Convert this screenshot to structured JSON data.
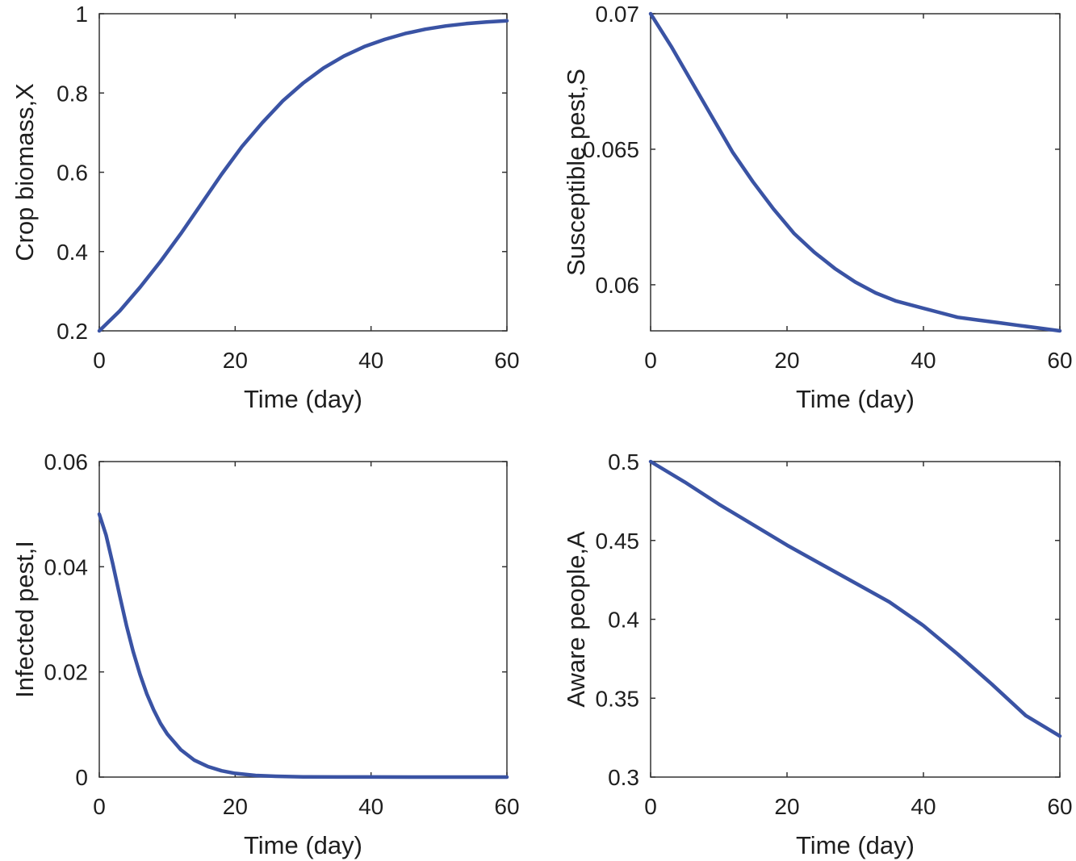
{
  "chart_data": [
    {
      "type": "line",
      "xlabel": "Time (day)",
      "ylabel": "Crop biomass,X",
      "xlim": [
        0,
        60
      ],
      "ylim": [
        0.2,
        1
      ],
      "xticks": [
        0,
        20,
        40,
        60
      ],
      "yticks": [
        0.2,
        0.4,
        0.6,
        0.8,
        1
      ],
      "ytick_labels": [
        "0.2",
        "0.4",
        "0.6",
        "0.8",
        "1"
      ],
      "grid": false,
      "color": "#3a53a4",
      "series": [
        {
          "x": [
            0,
            3,
            6,
            9,
            12,
            15,
            18,
            21,
            24,
            27,
            30,
            33,
            36,
            39,
            42,
            45,
            48,
            51,
            54,
            57,
            60
          ],
          "y": [
            0.2,
            0.25,
            0.31,
            0.375,
            0.445,
            0.52,
            0.595,
            0.665,
            0.725,
            0.78,
            0.825,
            0.863,
            0.893,
            0.917,
            0.935,
            0.95,
            0.961,
            0.969,
            0.975,
            0.979,
            0.982
          ]
        }
      ]
    },
    {
      "type": "line",
      "xlabel": "Time (day)",
      "ylabel": "Susceptible pest,S",
      "xlim": [
        0,
        60
      ],
      "ylim": [
        0.0583,
        0.07
      ],
      "xticks": [
        0,
        20,
        40,
        60
      ],
      "yticks": [
        0.06,
        0.065,
        0.07
      ],
      "ytick_labels": [
        "0.06",
        "0.065",
        "0.07"
      ],
      "grid": false,
      "color": "#3a53a4",
      "series": [
        {
          "x": [
            0,
            3,
            6,
            9,
            12,
            15,
            18,
            21,
            24,
            27,
            30,
            33,
            36,
            39,
            42,
            45,
            48,
            51,
            54,
            57,
            60
          ],
          "y": [
            0.07,
            0.0688,
            0.0675,
            0.0662,
            0.0649,
            0.0638,
            0.0628,
            0.0619,
            0.0612,
            0.0606,
            0.0601,
            0.0597,
            0.0594,
            0.0592,
            0.059,
            0.0588,
            0.0587,
            0.0586,
            0.0585,
            0.0584,
            0.0583
          ]
        }
      ]
    },
    {
      "type": "line",
      "xlabel": "Time (day)",
      "ylabel": "Infected pest,I",
      "xlim": [
        0,
        60
      ],
      "ylim": [
        0,
        0.06
      ],
      "xticks": [
        0,
        20,
        40,
        60
      ],
      "yticks": [
        0,
        0.02,
        0.04,
        0.06
      ],
      "ytick_labels": [
        "0",
        "0.02",
        "0.04",
        "0.06"
      ],
      "grid": false,
      "color": "#3a53a4",
      "series": [
        {
          "x": [
            0,
            1,
            2,
            3,
            4,
            5,
            6,
            7,
            8,
            9,
            10,
            12,
            14,
            16,
            18,
            20,
            23,
            26,
            30,
            35,
            40,
            50,
            60
          ],
          "y": [
            0.05,
            0.046,
            0.0405,
            0.0345,
            0.0288,
            0.0238,
            0.0195,
            0.0158,
            0.0128,
            0.0102,
            0.0082,
            0.0052,
            0.0032,
            0.002,
            0.0012,
            0.0007,
            0.0003,
            0.00015,
            5e-05,
            2e-05,
            1e-05,
            0,
            0
          ]
        }
      ]
    },
    {
      "type": "line",
      "xlabel": "Time (day)",
      "ylabel": "Aware people,A",
      "xlim": [
        0,
        60
      ],
      "ylim": [
        0.3,
        0.5
      ],
      "xticks": [
        0,
        20,
        40,
        60
      ],
      "yticks": [
        0.3,
        0.35,
        0.4,
        0.45,
        0.5
      ],
      "ytick_labels": [
        "0.3",
        "0.35",
        "0.4",
        "0.45",
        "0.5"
      ],
      "grid": false,
      "color": "#3a53a4",
      "series": [
        {
          "x": [
            0,
            5,
            10,
            15,
            20,
            25,
            30,
            35,
            40,
            45,
            50,
            55,
            60
          ],
          "y": [
            0.5,
            0.487,
            0.473,
            0.46,
            0.447,
            0.435,
            0.423,
            0.411,
            0.396,
            0.378,
            0.359,
            0.339,
            0.326
          ]
        }
      ]
    }
  ]
}
